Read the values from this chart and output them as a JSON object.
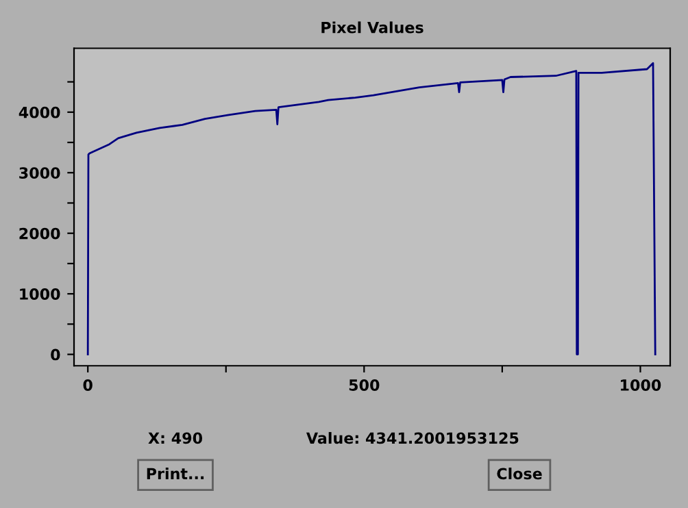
{
  "chart_data": {
    "type": "line",
    "title": "Pixel Values",
    "x": [
      0,
      1,
      3,
      39,
      55,
      88,
      130,
      171,
      212,
      253,
      303,
      341,
      343,
      345,
      418,
      435,
      484,
      517,
      600,
      670,
      672,
      674,
      750,
      752,
      754,
      765,
      847,
      884,
      885,
      887,
      888,
      930,
      1012,
      1023,
      1025,
      1027
    ],
    "series": [
      {
        "color": "#000080",
        "values": [
          0,
          3300,
          3320,
          3470,
          3570,
          3660,
          3740,
          3790,
          3890,
          3950,
          4020,
          4040,
          3800,
          4080,
          4170,
          4200,
          4240,
          4280,
          4410,
          4480,
          4330,
          4490,
          4530,
          4330,
          4540,
          4580,
          4600,
          4680,
          0,
          0,
          4650,
          4650,
          4710,
          4810,
          2420,
          0
        ]
      }
    ],
    "xlim": [
      -25,
      1054
    ],
    "ylim": [
      -188,
      5055
    ],
    "xticks": [
      0,
      {
        "value": 250,
        "label": null
      },
      500,
      {
        "value": 750,
        "label": null
      },
      1000
    ],
    "yticks": [
      0,
      {
        "value": 500,
        "label": null
      },
      1000,
      {
        "value": 1500,
        "label": null
      },
      2000,
      {
        "value": 2500,
        "label": null
      },
      3000,
      {
        "value": 3500,
        "label": null
      },
      4000,
      {
        "value": 4500,
        "label": null
      }
    ],
    "grid": false,
    "line_style": "solid",
    "marker": "none",
    "annotations": [
      "X: 490",
      "Value: 4341.2001953125",
      "Print...",
      "Close"
    ]
  }
}
